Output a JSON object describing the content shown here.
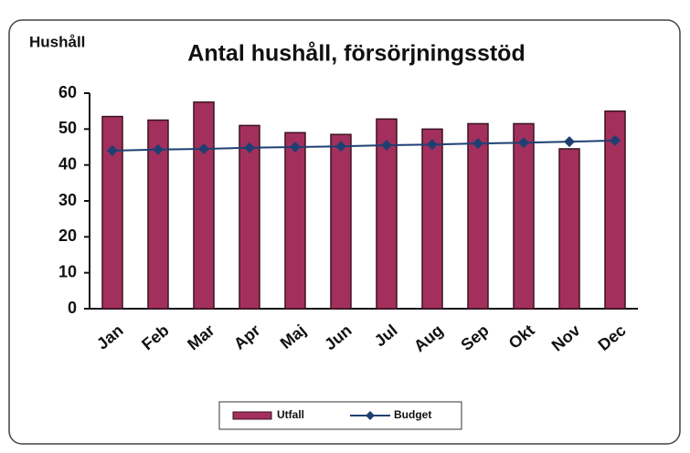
{
  "chart_data": {
    "type": "bar",
    "title": "Antal hushåll, försörjningsstöd",
    "y_label": "Hushåll",
    "categories": [
      "Jan",
      "Feb",
      "Mar",
      "Apr",
      "Maj",
      "Jun",
      "Jul",
      "Aug",
      "Sep",
      "Okt",
      "Nov",
      "Dec"
    ],
    "series": [
      {
        "name": "Utfall",
        "type": "bar",
        "color": "#a3305c",
        "values": [
          53.5,
          52.5,
          57.5,
          51,
          49,
          48.5,
          52.8,
          50,
          51.5,
          51.5,
          44.5,
          55
        ]
      },
      {
        "name": "Budget",
        "type": "line",
        "color": "#1f3f72",
        "values": [
          44,
          44.3,
          44.5,
          44.8,
          45,
          45.2,
          45.5,
          45.7,
          46,
          46.2,
          46.5,
          46.8
        ]
      }
    ],
    "ylim": [
      0,
      60
    ],
    "yticks": [
      0,
      10,
      20,
      30,
      40,
      50,
      60
    ],
    "grid": false,
    "legend": "bottom"
  }
}
